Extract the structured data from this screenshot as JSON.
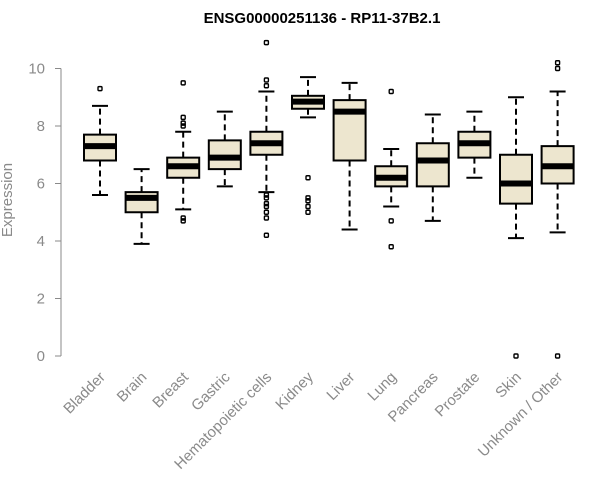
{
  "chart_data": {
    "type": "boxplot",
    "title": "ENSG00000251136 - RP11-37B2.1",
    "ylabel": "Expression",
    "xlabel": "",
    "ylim": [
      0,
      10.9
    ],
    "yticks": [
      0,
      2,
      4,
      6,
      8,
      10
    ],
    "box_color": "#ede6cf",
    "categories": [
      "Bladder",
      "Brain",
      "Breast",
      "Gastric",
      "Hematopoietic cells",
      "Kidney",
      "Liver",
      "Lung",
      "Pancreas",
      "Prostate",
      "Skin",
      "Unknown / Other"
    ],
    "boxes": [
      {
        "whisker_low": 5.6,
        "q1": 6.8,
        "median": 7.3,
        "q3": 7.7,
        "whisker_high": 8.7,
        "outliers": [
          9.3
        ]
      },
      {
        "whisker_low": 3.9,
        "q1": 5.0,
        "median": 5.5,
        "q3": 5.7,
        "whisker_high": 6.5,
        "outliers": []
      },
      {
        "whisker_low": 5.1,
        "q1": 6.2,
        "median": 6.6,
        "q3": 6.9,
        "whisker_high": 7.8,
        "outliers": [
          4.7,
          4.8,
          8.0,
          8.1,
          8.3,
          9.5
        ]
      },
      {
        "whisker_low": 5.9,
        "q1": 6.5,
        "median": 6.9,
        "q3": 7.5,
        "whisker_high": 8.5,
        "outliers": []
      },
      {
        "whisker_low": 5.7,
        "q1": 7.0,
        "median": 7.4,
        "q3": 7.8,
        "whisker_high": 9.2,
        "outliers": [
          4.2,
          4.8,
          5.0,
          5.2,
          5.3,
          5.5,
          5.6,
          9.4,
          9.6,
          10.9
        ]
      },
      {
        "whisker_low": 8.3,
        "q1": 8.6,
        "median": 8.85,
        "q3": 9.05,
        "whisker_high": 9.7,
        "outliers": [
          5.0,
          5.2,
          5.4,
          5.5,
          6.2
        ]
      },
      {
        "whisker_low": 4.4,
        "q1": 6.8,
        "median": 8.5,
        "q3": 8.9,
        "whisker_high": 9.5,
        "outliers": []
      },
      {
        "whisker_low": 5.2,
        "q1": 5.9,
        "median": 6.2,
        "q3": 6.6,
        "whisker_high": 7.2,
        "outliers": [
          3.8,
          4.7,
          9.2
        ]
      },
      {
        "whisker_low": 4.7,
        "q1": 5.9,
        "median": 6.8,
        "q3": 7.4,
        "whisker_high": 8.4,
        "outliers": []
      },
      {
        "whisker_low": 6.2,
        "q1": 6.9,
        "median": 7.4,
        "q3": 7.8,
        "whisker_high": 8.5,
        "outliers": []
      },
      {
        "whisker_low": 4.1,
        "q1": 5.3,
        "median": 6.0,
        "q3": 7.0,
        "whisker_high": 9.0,
        "outliers": [
          0.0
        ]
      },
      {
        "whisker_low": 4.3,
        "q1": 6.0,
        "median": 6.6,
        "q3": 7.3,
        "whisker_high": 9.2,
        "outliers": [
          0.0,
          10.0,
          10.2
        ]
      }
    ]
  }
}
